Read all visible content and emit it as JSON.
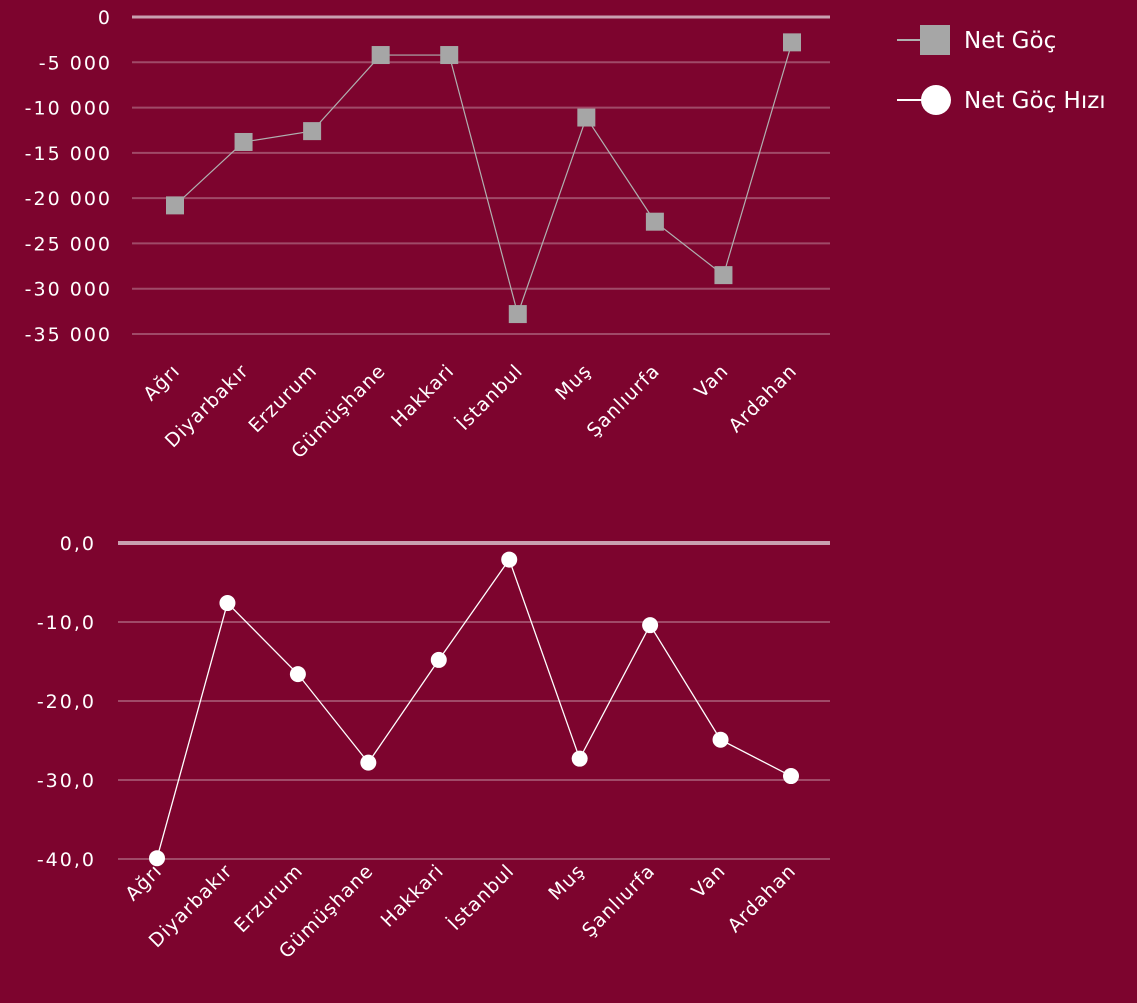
{
  "colors": {
    "background": "#7d042e",
    "gridline": "#a04a68",
    "net_goc_marker": "#a6a6a6",
    "net_goc_line": "#b0b0b0",
    "net_goc_hizi_marker": "#ffffff",
    "text": "#ffffff"
  },
  "legend": {
    "items": [
      {
        "label": "Net Göç",
        "marker": "square"
      },
      {
        "label": "Net Göç Hızı",
        "marker": "circle"
      }
    ],
    "placement": "top-right"
  },
  "chart_data": [
    {
      "type": "line",
      "series_name": "Net Göç",
      "categories": [
        "Ağrı",
        "Diyarbakır",
        "Erzurum",
        "Gümüşhane",
        "Hakkari",
        "İstanbul",
        "Muş",
        "Şanlıurfa",
        "Van",
        "Ardahan"
      ],
      "values": [
        -20800,
        -13800,
        -12600,
        -4200,
        -4200,
        -32800,
        -11100,
        -22600,
        -28500,
        -2800
      ],
      "ylim": [
        -35000,
        0
      ],
      "yticks": [
        0,
        -5000,
        -10000,
        -15000,
        -20000,
        -25000,
        -30000,
        -35000
      ],
      "ytick_labels": [
        "0",
        "-5 000",
        "-10 000",
        "-15 000",
        "-20 000",
        "-25 000",
        "-30 000",
        "-35 000"
      ],
      "grid": true,
      "marker": "square"
    },
    {
      "type": "line",
      "series_name": "Net Göç Hızı",
      "categories": [
        "Ağrı",
        "Diyarbakır",
        "Erzurum",
        "Gümüşhane",
        "Hakkari",
        "İstanbul",
        "Muş",
        "Şanlıurfa",
        "Van",
        "Ardahan"
      ],
      "values": [
        -39.9,
        -7.6,
        -16.6,
        -27.8,
        -14.8,
        -2.1,
        -27.3,
        -10.4,
        -24.9,
        -29.5
      ],
      "ylim": [
        -40,
        0
      ],
      "yticks": [
        0,
        -10,
        -20,
        -30,
        -40
      ],
      "ytick_labels": [
        "0,0",
        "-10,0",
        "-20,0",
        "-30,0",
        "-40,0"
      ],
      "grid": true,
      "marker": "circle"
    }
  ]
}
